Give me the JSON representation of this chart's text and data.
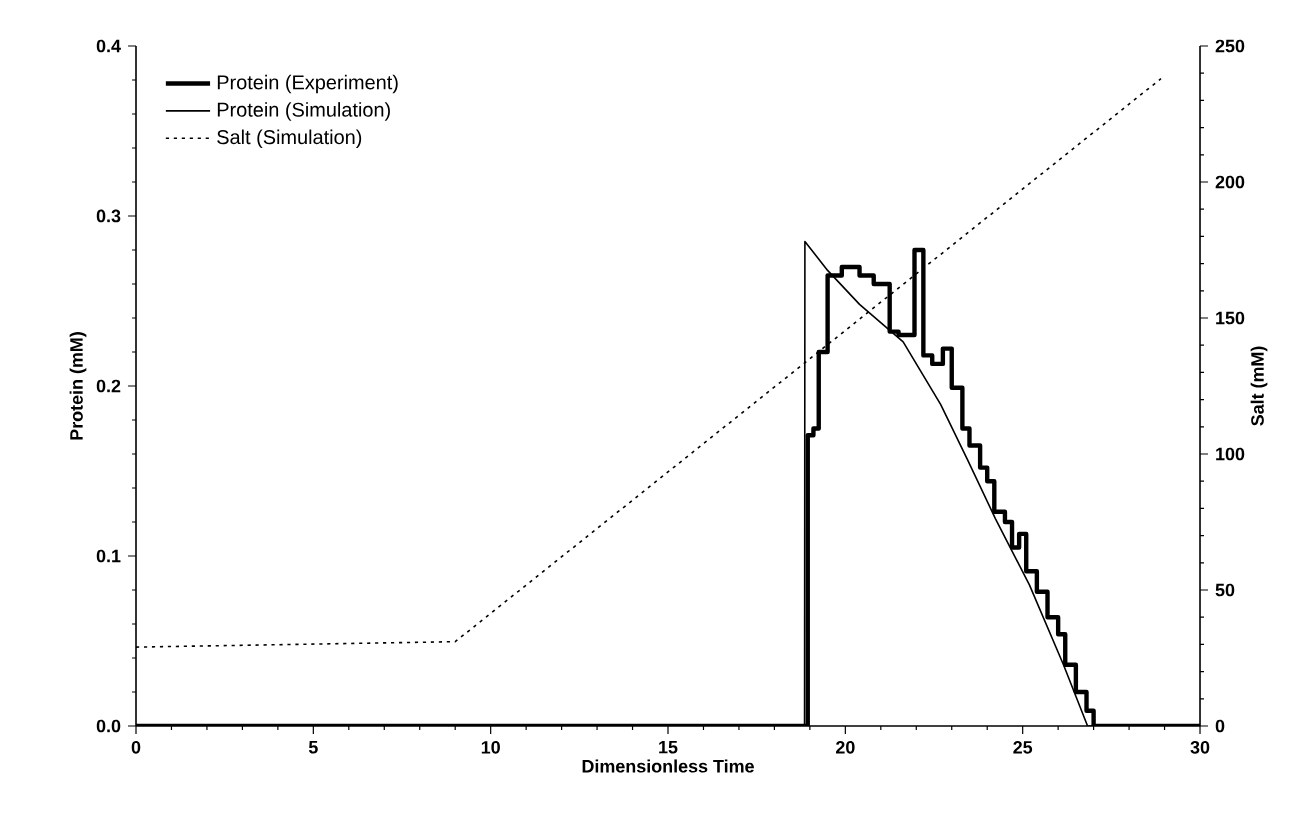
{
  "chart_data": {
    "type": "line",
    "xlabel": "Dimensionless Time",
    "ylabel": "Protein (mM)",
    "y2label": "Salt (mM)",
    "xlim": [
      0,
      30
    ],
    "xticks": [
      0,
      5,
      10,
      15,
      20,
      25,
      30
    ],
    "ylim": [
      0,
      0.4
    ],
    "yticks": [
      {
        "value": 0,
        "label": "0.0"
      },
      0.1,
      0.2,
      0.3,
      0.4
    ],
    "y2lim": [
      0,
      250
    ],
    "y2ticks": [
      0,
      50,
      100,
      150,
      200,
      250
    ],
    "legend": "top left",
    "grid": false,
    "series": [
      {
        "name": "Protein (Experiment)",
        "type": "step",
        "color": "#000000",
        "line_style": "solid",
        "x": [
          0,
          18.94,
          19.1,
          19.25,
          19.5,
          19.9,
          20.4,
          20.8,
          21.25,
          21.5,
          21.95,
          22.2,
          22.45,
          22.75,
          23.0,
          23.3,
          23.5,
          23.8,
          24.0,
          24.2,
          24.5,
          24.7,
          24.9,
          25.1,
          25.4,
          25.7,
          26.0,
          26.2,
          26.5,
          26.8,
          27.0,
          30
        ],
        "values": [
          0,
          0.171,
          0.175,
          0.22,
          0.265,
          0.27,
          0.265,
          0.26,
          0.232,
          0.23,
          0.28,
          0.218,
          0.213,
          0.222,
          0.199,
          0.175,
          0.165,
          0.152,
          0.144,
          0.126,
          0.12,
          0.105,
          0.113,
          0.091,
          0.079,
          0.064,
          0.054,
          0.036,
          0.02,
          0.009,
          0,
          0
        ]
      },
      {
        "name": "Protein (Simulation)",
        "color": "#000000",
        "line_style": "solid",
        "x": [
          0,
          18.85,
          18.86,
          19.5,
          20.4,
          21.63,
          22.69,
          23.46,
          24.23,
          25.19,
          26.15,
          26.83,
          30
        ],
        "values": [
          0,
          0,
          0.285,
          0.268,
          0.248,
          0.226,
          0.189,
          0.156,
          0.122,
          0.083,
          0.036,
          0,
          0
        ]
      },
      {
        "name": "Salt (Simulation)",
        "axis": "y2",
        "color": "#000000",
        "line_style": "dotted",
        "x": [
          0,
          9,
          28.9
        ],
        "values": [
          29,
          31,
          238
        ]
      }
    ]
  }
}
